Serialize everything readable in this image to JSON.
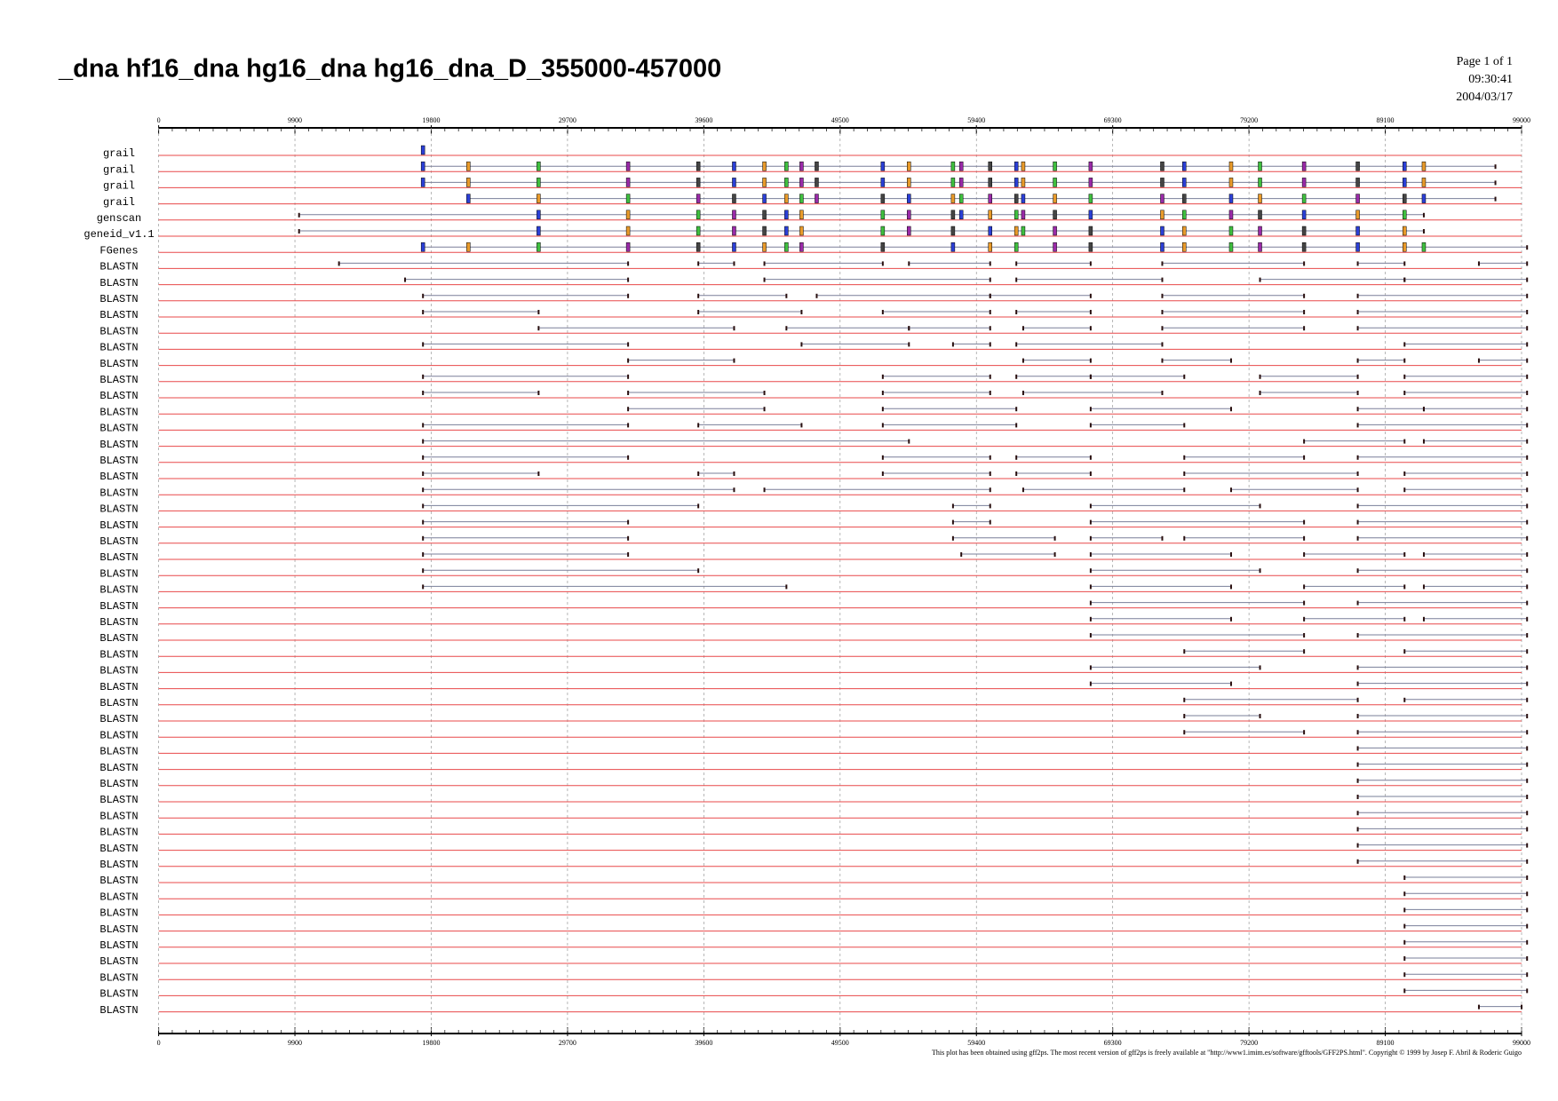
{
  "chart_data": {
    "type": "tracks",
    "title": "_dna hf16_dna hg16_dna hg16_dna_D_355000-457000",
    "page": [
      "Page 1 of 1",
      "09:30:41",
      "2004/03/17"
    ],
    "footer": "This plot has been obtained using gff2ps. The most recent version of gff2ps is freely available at \"http://www1.imim.es/software/gfftools/GFF2PS.html\". Copyright © 1999 by Josep F. Abril & Roderic Guigo",
    "xlim": [
      0,
      99000
    ],
    "xticks": [
      0,
      9900,
      19800,
      29700,
      39600,
      49500,
      59400,
      69300,
      79200,
      89100,
      99000
    ],
    "xminor": 990,
    "grid": true,
    "baseline_color": "#e8484a",
    "hit_color": "#7a7f99",
    "exon_colors": [
      "#2b3fd6",
      "#e89a2a",
      "#3fbf3f",
      "#9a2aa8",
      "#444444"
    ],
    "tracks": [
      {
        "label": "grail",
        "hits": [
          [
            19200,
            19200
          ]
        ],
        "exons": [
          19200
        ]
      },
      {
        "label": "grail",
        "hits": [
          [
            19200,
            97100
          ]
        ],
        "exons": [
          19200,
          22500,
          27600,
          34100,
          39200,
          41800,
          44000,
          45600,
          46700,
          47800,
          52600,
          54500,
          57700,
          58300,
          60400,
          62300,
          62800,
          65100,
          67700,
          72900,
          74500,
          77900,
          80000,
          83200,
          87100,
          90500,
          91900
        ]
      },
      {
        "label": "grail",
        "hits": [
          [
            19200,
            97100
          ]
        ],
        "exons": [
          19200,
          22500,
          27600,
          34100,
          39200,
          41800,
          44000,
          45600,
          46700,
          47800,
          52600,
          54500,
          57700,
          58300,
          60400,
          62300,
          62800,
          65100,
          67700,
          72900,
          74500,
          77900,
          80000,
          83200,
          87100,
          90500,
          91900
        ]
      },
      {
        "label": "grail",
        "hits": [
          [
            22500,
            97100
          ]
        ],
        "exons": [
          22500,
          27600,
          34100,
          39200,
          41800,
          44000,
          45600,
          46700,
          47800,
          52600,
          54500,
          57700,
          58300,
          60400,
          62300,
          62800,
          65100,
          67700,
          72900,
          74500,
          77900,
          80000,
          83200,
          87100,
          90500,
          91900
        ]
      },
      {
        "label": "genscan",
        "hits": [
          [
            10200,
            91900
          ]
        ],
        "exons": [
          27600,
          34100,
          39200,
          41800,
          44000,
          45600,
          46700,
          52600,
          54500,
          57700,
          58300,
          60400,
          62300,
          62800,
          65100,
          67700,
          72900,
          74500,
          77900,
          80000,
          83200,
          87100,
          90500
        ]
      },
      {
        "label": "geneid_v1.1",
        "hits": [
          [
            10200,
            91900
          ]
        ],
        "exons": [
          27600,
          34100,
          39200,
          41800,
          44000,
          45600,
          46700,
          52600,
          54500,
          57700,
          60400,
          62300,
          62800,
          65100,
          67700,
          72900,
          74500,
          77900,
          80000,
          83200,
          87100,
          90500
        ]
      },
      {
        "label": "FGenes",
        "hits": [
          [
            19200,
            99400
          ]
        ],
        "exons": [
          19200,
          22500,
          27600,
          34100,
          39200,
          41800,
          44000,
          45600,
          46700,
          52600,
          57700,
          60400,
          62300,
          65100,
          67700,
          72900,
          74500,
          77900,
          80000,
          83200,
          87100,
          90500,
          91900
        ]
      },
      {
        "label": "BLASTN",
        "hits": [
          [
            13100,
            34100
          ],
          [
            39200,
            41800
          ],
          [
            44000,
            52600
          ],
          [
            54500,
            60400
          ],
          [
            62300,
            67700
          ],
          [
            72900,
            83200
          ],
          [
            87100,
            90500
          ],
          [
            95900,
            99400
          ]
        ]
      },
      {
        "label": "BLASTN",
        "hits": [
          [
            17900,
            34100
          ],
          [
            44000,
            60400
          ],
          [
            62300,
            72900
          ],
          [
            80000,
            90500
          ],
          [
            90500,
            99400
          ]
        ]
      },
      {
        "label": "BLASTN",
        "hits": [
          [
            19200,
            34100
          ],
          [
            39200,
            45600
          ],
          [
            47800,
            60400
          ],
          [
            60400,
            67700
          ],
          [
            72900,
            83200
          ],
          [
            87100,
            99400
          ]
        ]
      },
      {
        "label": "BLASTN",
        "hits": [
          [
            19200,
            27600
          ],
          [
            39200,
            46700
          ],
          [
            52600,
            60400
          ],
          [
            62300,
            67700
          ],
          [
            72900,
            83200
          ],
          [
            87100,
            99400
          ]
        ]
      },
      {
        "label": "BLASTN",
        "hits": [
          [
            27600,
            41800
          ],
          [
            45600,
            54500
          ],
          [
            54500,
            60400
          ],
          [
            62800,
            67700
          ],
          [
            72900,
            83200
          ],
          [
            87100,
            99400
          ]
        ]
      },
      {
        "label": "BLASTN",
        "hits": [
          [
            19200,
            34100
          ],
          [
            46700,
            54500
          ],
          [
            57700,
            60400
          ],
          [
            62300,
            72900
          ],
          [
            90500,
            99400
          ]
        ]
      },
      {
        "label": "BLASTN",
        "hits": [
          [
            34100,
            41800
          ],
          [
            62800,
            67700
          ],
          [
            72900,
            77900
          ],
          [
            87100,
            90500
          ],
          [
            95900,
            99400
          ]
        ]
      },
      {
        "label": "BLASTN",
        "hits": [
          [
            19200,
            34100
          ],
          [
            52600,
            60400
          ],
          [
            62300,
            67700
          ],
          [
            67700,
            74500
          ],
          [
            80000,
            87100
          ],
          [
            90500,
            99400
          ]
        ]
      },
      {
        "label": "BLASTN",
        "hits": [
          [
            19200,
            27600
          ],
          [
            34100,
            44000
          ],
          [
            52600,
            60400
          ],
          [
            62800,
            72900
          ],
          [
            80000,
            87100
          ],
          [
            90500,
            99400
          ]
        ]
      },
      {
        "label": "BLASTN",
        "hits": [
          [
            34100,
            44000
          ],
          [
            52600,
            62300
          ],
          [
            67700,
            77900
          ],
          [
            87100,
            91900
          ],
          [
            91900,
            99400
          ]
        ]
      },
      {
        "label": "BLASTN",
        "hits": [
          [
            19200,
            34100
          ],
          [
            39200,
            46700
          ],
          [
            52600,
            62300
          ],
          [
            67700,
            74500
          ],
          [
            87100,
            99400
          ]
        ]
      },
      {
        "label": "BLASTN",
        "hits": [
          [
            19200,
            54500
          ],
          [
            83200,
            90500
          ],
          [
            91900,
            99400
          ]
        ]
      },
      {
        "label": "BLASTN",
        "hits": [
          [
            19200,
            34100
          ],
          [
            52600,
            60400
          ],
          [
            62300,
            67700
          ],
          [
            74500,
            83200
          ],
          [
            87100,
            99400
          ]
        ]
      },
      {
        "label": "BLASTN",
        "hits": [
          [
            19200,
            27600
          ],
          [
            39200,
            41800
          ],
          [
            52600,
            60400
          ],
          [
            62300,
            67700
          ],
          [
            74500,
            87100
          ],
          [
            90500,
            99400
          ]
        ]
      },
      {
        "label": "BLASTN",
        "hits": [
          [
            19200,
            41800
          ],
          [
            44000,
            60400
          ],
          [
            62800,
            74500
          ],
          [
            77900,
            87100
          ],
          [
            90500,
            99400
          ]
        ]
      },
      {
        "label": "BLASTN",
        "hits": [
          [
            19200,
            39200
          ],
          [
            57700,
            60400
          ],
          [
            67700,
            80000
          ],
          [
            87100,
            99400
          ]
        ]
      },
      {
        "label": "BLASTN",
        "hits": [
          [
            19200,
            34100
          ],
          [
            57700,
            60400
          ],
          [
            67700,
            83200
          ],
          [
            87100,
            99400
          ]
        ]
      },
      {
        "label": "BLASTN",
        "hits": [
          [
            19200,
            34100
          ],
          [
            57700,
            65100
          ],
          [
            67700,
            72900
          ],
          [
            74500,
            83200
          ],
          [
            87100,
            99400
          ]
        ]
      },
      {
        "label": "BLASTN",
        "hits": [
          [
            19200,
            34100
          ],
          [
            58300,
            65100
          ],
          [
            67700,
            77900
          ],
          [
            83200,
            90500
          ],
          [
            91900,
            99400
          ]
        ]
      },
      {
        "label": "BLASTN",
        "hits": [
          [
            19200,
            39200
          ],
          [
            67700,
            80000
          ],
          [
            87100,
            99400
          ]
        ]
      },
      {
        "label": "BLASTN",
        "hits": [
          [
            19200,
            45600
          ],
          [
            67700,
            77900
          ],
          [
            83200,
            90500
          ],
          [
            91900,
            99400
          ]
        ]
      },
      {
        "label": "BLASTN",
        "hits": [
          [
            67700,
            83200
          ],
          [
            87100,
            99400
          ]
        ]
      },
      {
        "label": "BLASTN",
        "hits": [
          [
            67700,
            77900
          ],
          [
            83200,
            90500
          ],
          [
            91900,
            99400
          ]
        ]
      },
      {
        "label": "BLASTN",
        "hits": [
          [
            67700,
            83200
          ],
          [
            87100,
            99400
          ]
        ]
      },
      {
        "label": "BLASTN",
        "hits": [
          [
            74500,
            83200
          ],
          [
            90500,
            99400
          ]
        ]
      },
      {
        "label": "BLASTN",
        "hits": [
          [
            67700,
            80000
          ],
          [
            87100,
            99400
          ]
        ]
      },
      {
        "label": "BLASTN",
        "hits": [
          [
            67700,
            77900
          ],
          [
            87100,
            99400
          ]
        ]
      },
      {
        "label": "BLASTN",
        "hits": [
          [
            74500,
            87100
          ],
          [
            90500,
            99400
          ]
        ]
      },
      {
        "label": "BLASTN",
        "hits": [
          [
            74500,
            80000
          ],
          [
            87100,
            99400
          ]
        ]
      },
      {
        "label": "BLASTN",
        "hits": [
          [
            74500,
            83200
          ],
          [
            87100,
            99400
          ]
        ]
      },
      {
        "label": "BLASTN",
        "hits": [
          [
            87100,
            99400
          ]
        ]
      },
      {
        "label": "BLASTN",
        "hits": [
          [
            87100,
            99400
          ]
        ]
      },
      {
        "label": "BLASTN",
        "hits": [
          [
            87100,
            99400
          ]
        ]
      },
      {
        "label": "BLASTN",
        "hits": [
          [
            87100,
            99400
          ]
        ]
      },
      {
        "label": "BLASTN",
        "hits": [
          [
            87100,
            99400
          ]
        ]
      },
      {
        "label": "BLASTN",
        "hits": [
          [
            87100,
            99400
          ]
        ]
      },
      {
        "label": "BLASTN",
        "hits": [
          [
            87100,
            99400
          ]
        ]
      },
      {
        "label": "BLASTN",
        "hits": [
          [
            87100,
            99400
          ]
        ]
      },
      {
        "label": "BLASTN",
        "hits": [
          [
            90500,
            99400
          ]
        ]
      },
      {
        "label": "BLASTN",
        "hits": [
          [
            90500,
            99400
          ]
        ]
      },
      {
        "label": "BLASTN",
        "hits": [
          [
            90500,
            99400
          ]
        ]
      },
      {
        "label": "BLASTN",
        "hits": [
          [
            90500,
            99400
          ]
        ]
      },
      {
        "label": "BLASTN",
        "hits": [
          [
            90500,
            99400
          ]
        ]
      },
      {
        "label": "BLASTN",
        "hits": [
          [
            90500,
            99400
          ]
        ]
      },
      {
        "label": "BLASTN",
        "hits": [
          [
            90500,
            99400
          ]
        ]
      },
      {
        "label": "BLASTN",
        "hits": [
          [
            90500,
            99400
          ]
        ]
      },
      {
        "label": "BLASTN",
        "hits": [
          [
            95900,
            99000
          ]
        ]
      }
    ]
  }
}
